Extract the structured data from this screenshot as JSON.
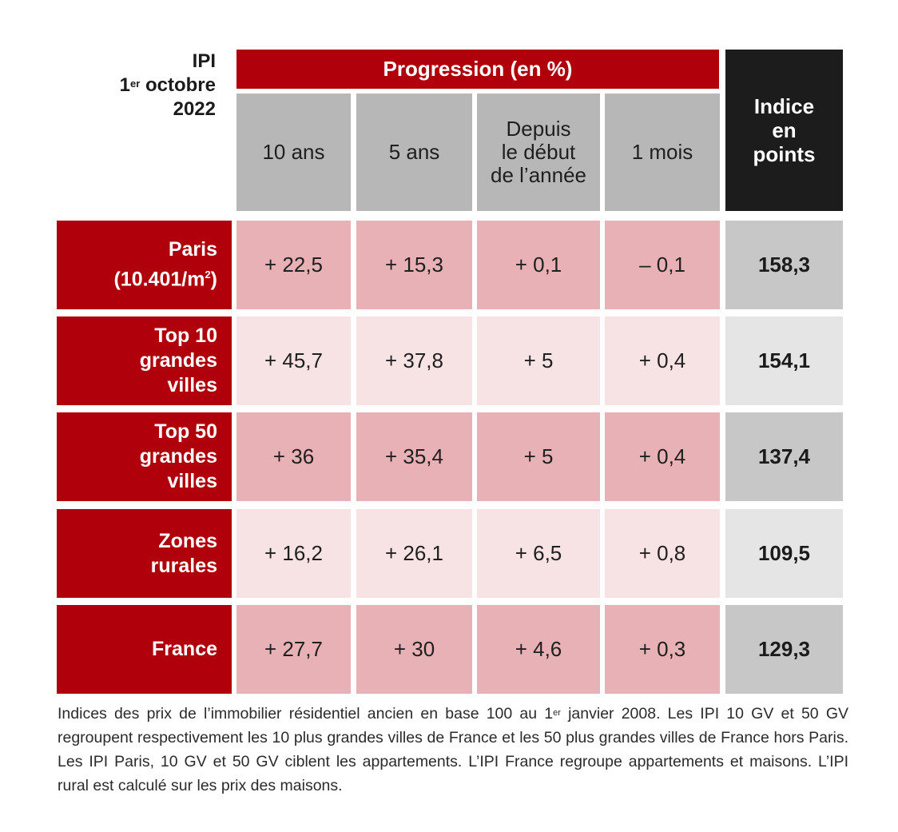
{
  "chart_data": {
    "type": "table",
    "corner_label": {
      "line1": "IPI",
      "line2_num": "1",
      "line2_sup": "er",
      "line2_rest": " octobre",
      "line3": "2022"
    },
    "group_header": "Progression (en %)",
    "columns": [
      "10 ans",
      "5 ans",
      "Depuis\nle début\nde l’année",
      "1 mois"
    ],
    "index_header": "Indice\nen\npoints",
    "rows": [
      {
        "label": "Paris\n(10.401/m",
        "label_sup": "2",
        "label_end": ")",
        "values": [
          "+ 22,5",
          "+ 15,3",
          "+ 0,1",
          "– 0,1"
        ],
        "index": "158,3"
      },
      {
        "label": "Top 10\ngrandes\nvilles",
        "label_sup": "",
        "label_end": "",
        "values": [
          "+ 45,7",
          "+ 37,8",
          "+ 5",
          "+ 0,4"
        ],
        "index": "154,1"
      },
      {
        "label": "Top 50\ngrandes\nvilles",
        "label_sup": "",
        "label_end": "",
        "values": [
          "+ 36",
          "+ 35,4",
          "+ 5",
          "+ 0,4"
        ],
        "index": "137,4"
      },
      {
        "label": "Zones\nrurales",
        "label_sup": "",
        "label_end": "",
        "values": [
          "+ 16,2",
          "+ 26,1",
          "+ 6,5",
          "+ 0,8"
        ],
        "index": "109,5"
      },
      {
        "label": "France",
        "label_sup": "",
        "label_end": "",
        "values": [
          "+ 27,7",
          "+ 30",
          "+ 4,6",
          "+ 0,3"
        ],
        "index": "129,3"
      }
    ],
    "colors": {
      "red": "#b0000c",
      "grey_header": "#b8b7b7",
      "black_header": "#1c1c1c",
      "pink_dark": "#e8b1b5",
      "pink_light": "#f8e3e4",
      "grey_dark": "#c8c7c7",
      "grey_light": "#e6e5e5"
    }
  },
  "footnote": {
    "part1": "Indices des prix de l’immobilier résidentiel ancien en base 100 au 1",
    "sup": "er",
    "part2": " janvier 2008. Les IPI 10 GV et 50 GV regroupent respectivement les 10 plus grandes villes de France et les 50 plus grandes villes de France hors Paris. Les IPI Paris, 10 GV et 50 GV ciblent les appartements. L’IPI France regroupe appartements et maisons. L’IPI rural est calculé sur les prix des maisons."
  }
}
